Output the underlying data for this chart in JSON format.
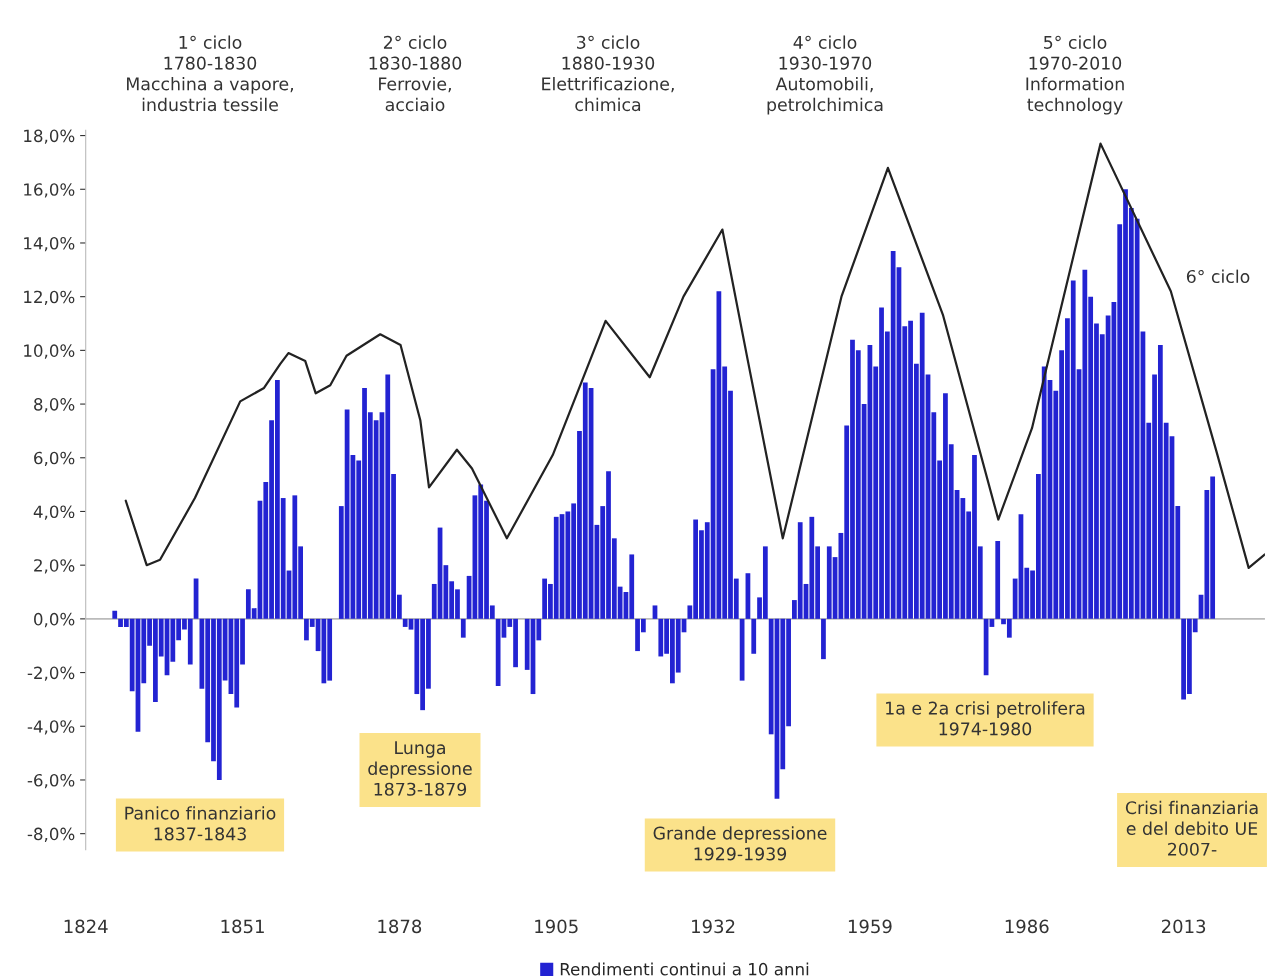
{
  "chart_data": {
    "type": "bar",
    "x": [
      1829,
      1830,
      1831,
      1832,
      1833,
      1834,
      1835,
      1836,
      1837,
      1838,
      1839,
      1840,
      1841,
      1842,
      1843,
      1844,
      1845,
      1846,
      1847,
      1848,
      1849,
      1850,
      1851,
      1852,
      1853,
      1854,
      1855,
      1856,
      1857,
      1858,
      1859,
      1860,
      1861,
      1862,
      1863,
      1864,
      1865,
      1866,
      1867,
      1868,
      1869,
      1870,
      1871,
      1872,
      1873,
      1874,
      1875,
      1876,
      1877,
      1878,
      1879,
      1880,
      1881,
      1882,
      1883,
      1884,
      1885,
      1886,
      1887,
      1888,
      1889,
      1890,
      1891,
      1892,
      1893,
      1894,
      1895,
      1896,
      1897,
      1898,
      1899,
      1900,
      1901,
      1902,
      1903,
      1904,
      1905,
      1906,
      1907,
      1908,
      1909,
      1910,
      1911,
      1912,
      1913,
      1914,
      1915,
      1916,
      1917,
      1918,
      1919,
      1920,
      1921,
      1922,
      1923,
      1924,
      1925,
      1926,
      1927,
      1928,
      1929,
      1930,
      1931,
      1932,
      1933,
      1934,
      1935,
      1936,
      1937,
      1938,
      1939,
      1940,
      1941,
      1942,
      1943,
      1944,
      1945,
      1946,
      1947,
      1948,
      1949,
      1950,
      1951,
      1952,
      1953,
      1954,
      1955,
      1956,
      1957,
      1958,
      1959,
      1960,
      1961,
      1962,
      1963,
      1964,
      1965,
      1966,
      1967,
      1968,
      1969,
      1970,
      1971,
      1972,
      1973,
      1974,
      1975,
      1976,
      1977,
      1978,
      1979,
      1980,
      1981,
      1982,
      1983,
      1984,
      1985,
      1986,
      1987,
      1988,
      1989,
      1990,
      1991,
      1992,
      1993,
      1994,
      1995,
      1996,
      1997,
      1998,
      1999,
      2000,
      2001,
      2002,
      2003,
      2004,
      2005,
      2006,
      2007,
      2008,
      2009,
      2010,
      2011,
      2012,
      2013,
      2014,
      2015,
      2016,
      2017,
      2018
    ],
    "series": [
      {
        "name": "Rendimenti continui a 10 anni",
        "color": "#2323d2",
        "values": [
          0.3,
          -0.3,
          -0.3,
          -2.7,
          -4.2,
          -2.4,
          -1.0,
          -3.1,
          -1.4,
          -2.1,
          -1.6,
          -0.8,
          -0.4,
          -1.7,
          1.5,
          -2.6,
          -4.6,
          -5.3,
          -6.0,
          -2.3,
          -2.8,
          -3.3,
          -1.7,
          1.1,
          0.4,
          4.4,
          5.1,
          7.4,
          8.9,
          4.5,
          1.8,
          4.6,
          2.7,
          -0.8,
          -0.3,
          -1.2,
          -2.4,
          -2.3,
          0.0,
          4.2,
          7.8,
          6.1,
          5.9,
          8.6,
          7.7,
          7.4,
          7.7,
          9.1,
          5.4,
          0.9,
          -0.3,
          -0.4,
          -2.8,
          -3.4,
          -2.6,
          1.3,
          3.4,
          2.0,
          1.4,
          1.1,
          -0.7,
          1.6,
          4.6,
          5.0,
          4.4,
          0.5,
          -2.5,
          -0.7,
          -0.3,
          -1.8,
          0.0,
          -1.9,
          -2.8,
          -0.8,
          1.5,
          1.3,
          3.8,
          3.9,
          4.0,
          4.3,
          7.0,
          8.8,
          8.6,
          3.5,
          4.2,
          5.5,
          3.0,
          1.2,
          1.0,
          2.4,
          -1.2,
          -0.5,
          0.0,
          0.5,
          -1.4,
          -1.3,
          -2.4,
          -2.0,
          -0.5,
          0.5,
          3.7,
          3.3,
          3.6,
          9.3,
          12.2,
          9.4,
          8.5,
          1.5,
          -2.3,
          1.7,
          -1.3,
          0.8,
          2.7,
          -4.3,
          -6.7,
          -5.6,
          -4.0,
          0.7,
          3.6,
          1.3,
          3.8,
          2.7,
          -1.5,
          2.7,
          2.3,
          3.2,
          7.2,
          10.4,
          10.0,
          8.0,
          10.2,
          9.4,
          11.6,
          10.7,
          13.7,
          13.1,
          10.9,
          11.1,
          9.5,
          11.4,
          9.1,
          7.7,
          5.9,
          8.4,
          6.5,
          4.8,
          4.5,
          4.0,
          6.1,
          2.7,
          -2.1,
          -0.3,
          2.9,
          -0.2,
          -0.7,
          1.5,
          3.9,
          1.9,
          1.8,
          5.4,
          9.4,
          8.9,
          8.5,
          10.0,
          11.2,
          12.6,
          9.3,
          13.0,
          12.0,
          11.0,
          10.6,
          11.3,
          11.8,
          14.7,
          16.0,
          15.3,
          14.9,
          10.7,
          7.3,
          9.1,
          10.2,
          7.3,
          6.8,
          4.2,
          -3.0,
          -2.8,
          -0.5,
          0.9,
          4.8,
          5.3
        ]
      },
      {
        "type": "line",
        "color": "#222222",
        "x": [
          1830.9,
          1834.5,
          1836.8,
          1842.8,
          1850.6,
          1854.7,
          1857.5,
          1858.9,
          1861.8,
          1863.6,
          1866.1,
          1868.9,
          1874.7,
          1878.2,
          1881.6,
          1883.1,
          1887.9,
          1890.5,
          1896.5,
          1904.4,
          1913.5,
          1921.1,
          1926.9,
          1933.6,
          1938.0,
          1944.0,
          1954.1,
          1962.1,
          1971.6,
          1981.1,
          1986.9,
          1998.7,
          2010.8,
          2018.7,
          2024.2,
          2027.0
        ],
        "values": [
          4.4,
          2.0,
          2.2,
          4.5,
          8.1,
          8.6,
          9.5,
          9.9,
          9.6,
          8.4,
          8.7,
          9.8,
          10.6,
          10.2,
          7.4,
          4.9,
          6.3,
          5.6,
          3.0,
          6.1,
          11.1,
          9.0,
          12.0,
          14.5,
          9.6,
          3.0,
          12.0,
          16.8,
          11.3,
          3.7,
          7.1,
          17.7,
          12.2,
          6.2,
          1.9,
          2.4
        ]
      }
    ],
    "xlim": [
      1824,
      2027
    ],
    "ylim": [
      -8.6,
      18.2
    ],
    "xticks": [
      1824,
      1851,
      1878,
      1905,
      1932,
      1959,
      1986,
      2013
    ],
    "yticks": [
      {
        "value": -8,
        "label": "-8,0%"
      },
      {
        "value": -6,
        "label": "-6,0%"
      },
      {
        "value": -4,
        "label": "-4,0%"
      },
      {
        "value": -2,
        "label": "-2,0%"
      },
      {
        "value": 0,
        "label": "0,0%"
      },
      {
        "value": 2,
        "label": "2,0%"
      },
      {
        "value": 4,
        "label": "4,0%"
      },
      {
        "value": 6,
        "label": "6,0%"
      },
      {
        "value": 8,
        "label": "8,0%"
      },
      {
        "value": 10,
        "label": "10,0%"
      },
      {
        "value": 12,
        "label": "12,0%"
      },
      {
        "value": 14,
        "label": "14,0%"
      },
      {
        "value": 16,
        "label": "16,0%"
      },
      {
        "value": 18,
        "label": "18,0%"
      }
    ],
    "ref_lines": [
      {
        "axis": "y",
        "value": 0,
        "color": "#bbbbbb"
      }
    ],
    "annotations": [
      "1° ciclo\n1780-1830\nMacchina a vapore,\nindustria tessile",
      "2° ciclo\n1830-1880\nFerrovie,\nacciaio",
      "3° ciclo\n1880-1930\nElettrificazione,\nchimica",
      "4° ciclo\n1930-1970\nAutomobili,\npetrolchimica",
      "5° ciclo\n1970-2010\nInformation\ntechnology",
      "6° ciclo",
      "Panico finanziario\n1837-1843",
      "Lunga\ndepressione\n1873-1879",
      "Grande depressione\n1929-1939",
      "1a e 2a crisi petrolifera\n1974-1980",
      "Crisi finanziaria\ne del debito UE\n2007-"
    ],
    "legend": "bottom",
    "grid": false
  }
}
